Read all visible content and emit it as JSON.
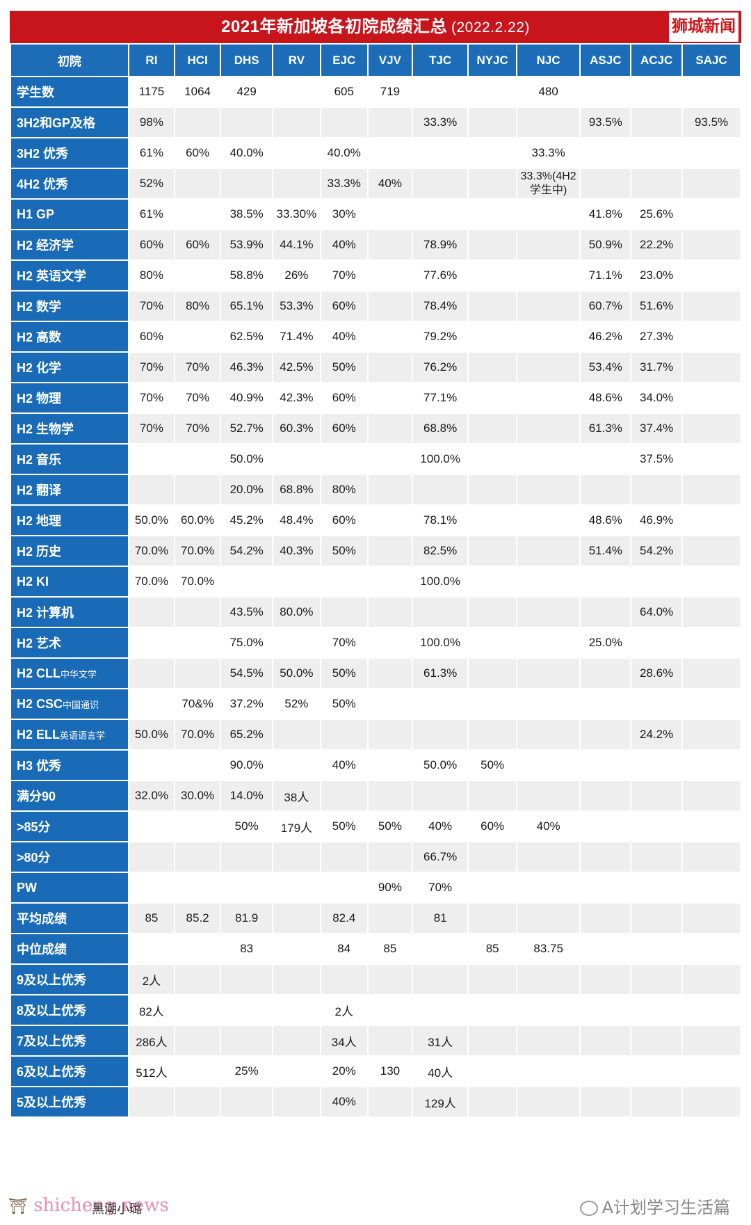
{
  "title": "2021年新加坡各初院成绩汇总",
  "title_date": "(2022.2.22)",
  "source_tag": "狮城新闻",
  "headers": [
    "初院",
    "RI",
    "HCI",
    "DHS",
    "RV",
    "EJC",
    "VJV",
    "TJC",
    "NYJC",
    "NJC",
    "ASJC",
    "ACJC",
    "SAJC"
  ],
  "rows": [
    {
      "label": "学生数",
      "cells": [
        "1175",
        "1064",
        "429",
        "",
        "605",
        "719",
        "",
        "",
        "480",
        "",
        "",
        ""
      ]
    },
    {
      "label": "3H2和GP及格",
      "cells": [
        "98%",
        "",
        "",
        "",
        "",
        "",
        "33.3%",
        "",
        "",
        "93.5%",
        "",
        "93.5%"
      ]
    },
    {
      "label": "3H2 优秀",
      "cells": [
        "61%",
        "60%",
        "40.0%",
        "",
        "40.0%",
        "",
        "",
        "",
        "33.3%",
        "",
        "",
        ""
      ]
    },
    {
      "label": "4H2 优秀",
      "cells": [
        "52%",
        "",
        "",
        "",
        "33.3%",
        "40%",
        "",
        "",
        "33.3%(4H2 学生中)",
        "",
        "",
        ""
      ]
    },
    {
      "label": "H1 GP",
      "cells": [
        "61%",
        "",
        "38.5%",
        "33.30%",
        "30%",
        "",
        "",
        "",
        "",
        "41.8%",
        "25.6%",
        ""
      ]
    },
    {
      "label": "H2 经济学",
      "cells": [
        "60%",
        "60%",
        "53.9%",
        "44.1%",
        "40%",
        "",
        "78.9%",
        "",
        "",
        "50.9%",
        "22.2%",
        ""
      ]
    },
    {
      "label": "H2 英语文学",
      "cells": [
        "80%",
        "",
        "58.8%",
        "26%",
        "70%",
        "",
        "77.6%",
        "",
        "",
        "71.1%",
        "23.0%",
        ""
      ]
    },
    {
      "label": "H2 数学",
      "cells": [
        "70%",
        "80%",
        "65.1%",
        "53.3%",
        "60%",
        "",
        "78.4%",
        "",
        "",
        "60.7%",
        "51.6%",
        ""
      ]
    },
    {
      "label": "H2 高数",
      "cells": [
        "60%",
        "",
        "62.5%",
        "71.4%",
        "40%",
        "",
        "79.2%",
        "",
        "",
        "46.2%",
        "27.3%",
        ""
      ]
    },
    {
      "label": "H2 化学",
      "cells": [
        "70%",
        "70%",
        "46.3%",
        "42.5%",
        "50%",
        "",
        "76.2%",
        "",
        "",
        "53.4%",
        "31.7%",
        ""
      ]
    },
    {
      "label": "H2 物理",
      "cells": [
        "70%",
        "70%",
        "40.9%",
        "42.3%",
        "60%",
        "",
        "77.1%",
        "",
        "",
        "48.6%",
        "34.0%",
        ""
      ]
    },
    {
      "label": "H2 生物学",
      "cells": [
        "70%",
        "70%",
        "52.7%",
        "60.3%",
        "60%",
        "",
        "68.8%",
        "",
        "",
        "61.3%",
        "37.4%",
        ""
      ]
    },
    {
      "label": "H2 音乐",
      "cells": [
        "",
        "",
        "50.0%",
        "",
        "",
        "",
        "100.0%",
        "",
        "",
        "",
        "37.5%",
        ""
      ]
    },
    {
      "label": "H2 翻译",
      "cells": [
        "",
        "",
        "20.0%",
        "68.8%",
        "80%",
        "",
        "",
        "",
        "",
        "",
        "",
        ""
      ]
    },
    {
      "label": "H2 地理",
      "cells": [
        "50.0%",
        "60.0%",
        "45.2%",
        "48.4%",
        "60%",
        "",
        "78.1%",
        "",
        "",
        "48.6%",
        "46.9%",
        ""
      ]
    },
    {
      "label": "H2 历史",
      "cells": [
        "70.0%",
        "70.0%",
        "54.2%",
        "40.3%",
        "50%",
        "",
        "82.5%",
        "",
        "",
        "51.4%",
        "54.2%",
        ""
      ]
    },
    {
      "label": "H2 KI",
      "cells": [
        "70.0%",
        "70.0%",
        "",
        "",
        "",
        "",
        "100.0%",
        "",
        "",
        "",
        "",
        ""
      ]
    },
    {
      "label": "H2 计算机",
      "cells": [
        "",
        "",
        "43.5%",
        "80.0%",
        "",
        "",
        "",
        "",
        "",
        "",
        "64.0%",
        ""
      ]
    },
    {
      "label": "H2 艺术",
      "cells": [
        "",
        "",
        "75.0%",
        "",
        "70%",
        "",
        "100.0%",
        "",
        "",
        "25.0%",
        "",
        ""
      ]
    },
    {
      "label": "H2 CLL",
      "label_small": "中华文学",
      "cells": [
        "",
        "",
        "54.5%",
        "50.0%",
        "50%",
        "",
        "61.3%",
        "",
        "",
        "",
        "28.6%",
        ""
      ]
    },
    {
      "label": "H2 CSC",
      "label_small": "中国通识",
      "cells": [
        "",
        "70&%",
        "37.2%",
        "52%",
        "50%",
        "",
        "",
        "",
        "",
        "",
        "",
        ""
      ]
    },
    {
      "label": "H2 ELL",
      "label_small": "英语语言学",
      "cells": [
        "50.0%",
        "70.0%",
        "65.2%",
        "",
        "",
        "",
        "",
        "",
        "",
        "",
        "24.2%",
        ""
      ]
    },
    {
      "label": "H3 优秀",
      "cells": [
        "",
        "",
        "90.0%",
        "",
        "40%",
        "",
        "50.0%",
        "50%",
        "",
        "",
        "",
        ""
      ]
    },
    {
      "label": "满分90",
      "cells": [
        "32.0%",
        "30.0%",
        "14.0%",
        "38人",
        "",
        "",
        "",
        "",
        "",
        "",
        "",
        ""
      ]
    },
    {
      "label": ">85分",
      "cells": [
        "",
        "",
        "50%",
        "179人",
        "50%",
        "50%",
        "40%",
        "60%",
        "40%",
        "",
        "",
        ""
      ]
    },
    {
      "label": ">80分",
      "cells": [
        "",
        "",
        "",
        "",
        "",
        "",
        "66.7%",
        "",
        "",
        "",
        "",
        ""
      ]
    },
    {
      "label": "PW",
      "cells": [
        "",
        "",
        "",
        "",
        "",
        "90%",
        "70%",
        "",
        "",
        "",
        "",
        ""
      ]
    },
    {
      "label": "平均成绩",
      "cells": [
        "85",
        "85.2",
        "81.9",
        "",
        "82.4",
        "",
        "81",
        "",
        "",
        "",
        "",
        ""
      ]
    },
    {
      "label": "中位成绩",
      "cells": [
        "",
        "",
        "83",
        "",
        "84",
        "85",
        "",
        "85",
        "83.75",
        "",
        "",
        ""
      ]
    },
    {
      "label": "9及以上优秀",
      "cells": [
        "2人",
        "",
        "",
        "",
        "",
        "",
        "",
        "",
        "",
        "",
        "",
        ""
      ]
    },
    {
      "label": "8及以上优秀",
      "cells": [
        "82人",
        "",
        "",
        "",
        "2人",
        "",
        "",
        "",
        "",
        "",
        "",
        ""
      ]
    },
    {
      "label": "7及以上优秀",
      "cells": [
        "286人",
        "",
        "",
        "",
        "34人",
        "",
        "31人",
        "",
        "",
        "",
        "",
        ""
      ]
    },
    {
      "label": "6及以上优秀",
      "cells": [
        "512人",
        "",
        "25%",
        "",
        "20%",
        "130",
        "40人",
        "",
        "",
        "",
        "",
        ""
      ]
    },
    {
      "label": "5及以上优秀",
      "cells": [
        "",
        "",
        "",
        "",
        "40%",
        "",
        "129人",
        "",
        "",
        "",
        "",
        ""
      ]
    }
  ],
  "footer": {
    "logo_text": "shicheng.news",
    "author": "黑潮小璐",
    "account": "A计划学习生活篇"
  }
}
